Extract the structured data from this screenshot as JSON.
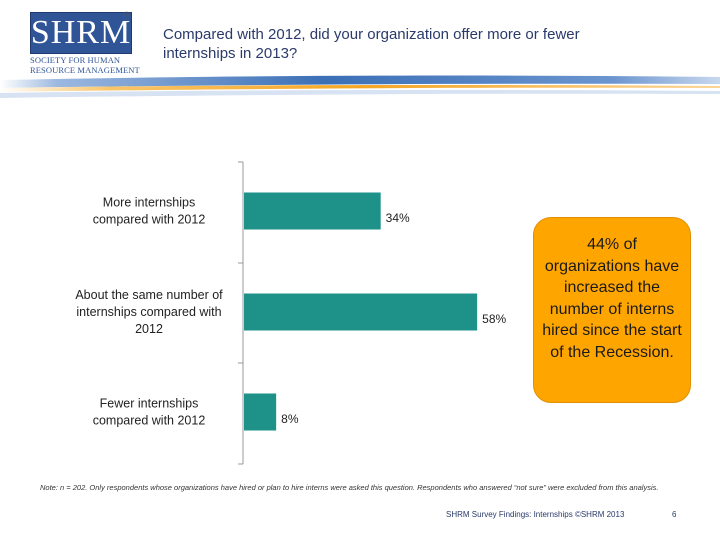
{
  "logo": {
    "mark": "SHRM",
    "line1": "SOCIETY FOR HUMAN",
    "line2": "RESOURCE MANAGEMENT",
    "registered": "®"
  },
  "title": "Compared with 2012, did your organization offer more or fewer internships in 2013?",
  "colors": {
    "bar": "#1e9189",
    "callout": "#ffa500",
    "band_blue": "#3b6fb6",
    "band_orange": "#f5a623"
  },
  "chart_data": {
    "type": "bar",
    "orientation": "horizontal",
    "categories": [
      [
        "More internships",
        "compared with 2012"
      ],
      [
        "About the same number of",
        "internships compared with",
        "2012"
      ],
      [
        "Fewer internships",
        "compared with 2012"
      ]
    ],
    "values": [
      34,
      58,
      8
    ],
    "data_labels": [
      "34%",
      "58%",
      "8%"
    ],
    "xlim": [
      0,
      100
    ],
    "grid": false
  },
  "callout": "44% of organizations have increased the number of interns hired since the start of the Recession.",
  "note": "Note: n = 202. Only respondents whose organizations have hired or plan to hire interns were asked this question. Respondents who answered “not sure” were excluded from this analysis.",
  "footer": "SHRM Survey Findings: Internships ©SHRM 2013",
  "page_number": "6"
}
